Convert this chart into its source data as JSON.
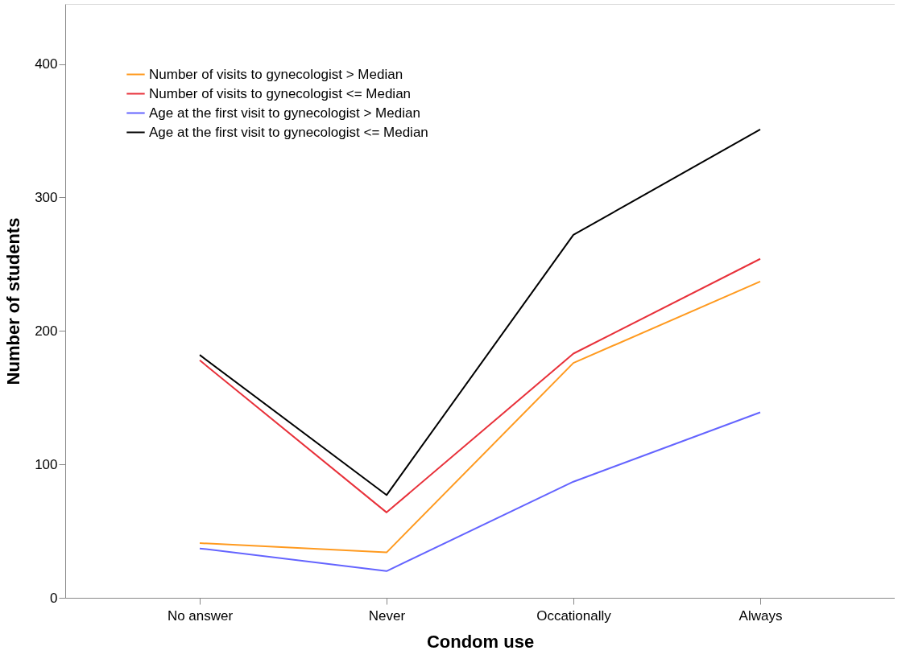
{
  "chart_data": {
    "type": "line",
    "xlabel": "Condom use",
    "ylabel": "Number of students",
    "categories": [
      "No answer",
      "Never",
      "Occationally",
      "Always"
    ],
    "series": [
      {
        "name": "Number of visits to gynecologist > Median",
        "color": "#ff9a1f",
        "values": [
          41,
          34,
          176,
          237
        ]
      },
      {
        "name": "Number of visits to gynecologist <= Median",
        "color": "#e8313a",
        "values": [
          178,
          64,
          183,
          254
        ]
      },
      {
        "name": "Age at the first visit to gynecologist > Median",
        "color": "#6464ff",
        "values": [
          37,
          20,
          87,
          139
        ]
      },
      {
        "name": "Age at the first visit to gynecologist <= Median",
        "color": "#000000",
        "values": [
          182,
          77,
          272,
          351
        ]
      }
    ],
    "ylim": [
      0,
      445
    ],
    "yticks": [
      0,
      100,
      200,
      300,
      400
    ],
    "grid": false,
    "legend": "top left",
    "marker": "none",
    "line_style": "solid"
  }
}
